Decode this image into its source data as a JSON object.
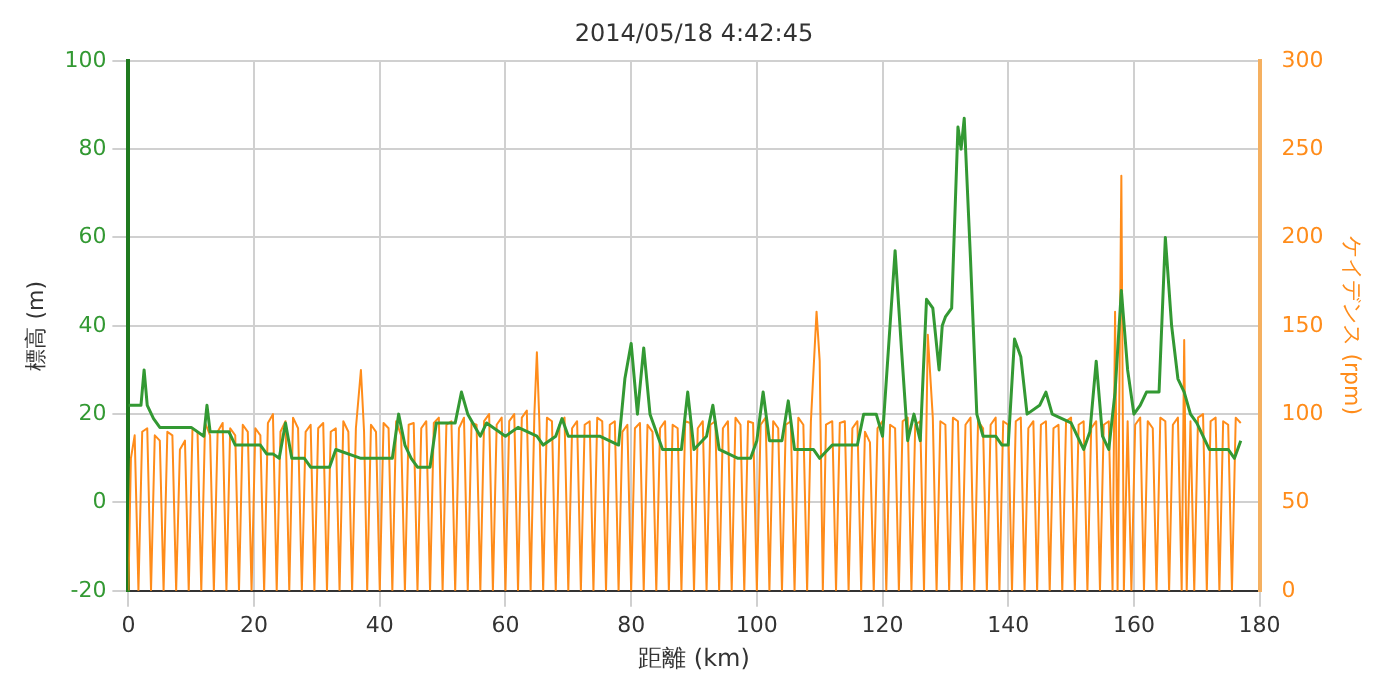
{
  "chart_data": {
    "type": "line",
    "title": "2014/05/18 4:42:45",
    "xlabel": "距離 (km)",
    "ylabel": "標高 (m)",
    "y2label": "ケイデンス (rpm)",
    "xlim": [
      0,
      180
    ],
    "xticks": [
      0,
      20,
      40,
      60,
      80,
      100,
      120,
      140,
      160,
      180
    ],
    "ylim": [
      -20,
      100
    ],
    "yticks": [
      -20,
      0,
      20,
      40,
      60,
      80,
      100
    ],
    "y2lim": [
      0,
      300
    ],
    "y2ticks": [
      0,
      50,
      100,
      150,
      200,
      250,
      300
    ],
    "grid": true,
    "series": [
      {
        "color": "#ff8c1a",
        "axis": "y2",
        "x": [
          0,
          0.4,
          1,
          1.6,
          2.2,
          3,
          3.6,
          4.2,
          5,
          5.6,
          6.2,
          7,
          7.6,
          8.2,
          9,
          9.6,
          10.2,
          11,
          11.6,
          12.2,
          13,
          13.6,
          14.2,
          15,
          15.6,
          16.2,
          17,
          17.6,
          18.2,
          19,
          19.6,
          20.2,
          21,
          21.6,
          22.2,
          23,
          23.6,
          24.2,
          25,
          25.6,
          26.2,
          27,
          27.6,
          28.2,
          29,
          29.6,
          30.2,
          31,
          31.6,
          32.2,
          33,
          33.6,
          34.2,
          35,
          35.6,
          36.2,
          37,
          37.5,
          38,
          38.6,
          39.4,
          40,
          40.6,
          41.4,
          42,
          42.6,
          43.4,
          44,
          44.6,
          45.4,
          46,
          46.6,
          47.4,
          48,
          48.6,
          49.4,
          50,
          50.6,
          51.4,
          52,
          52.6,
          53.4,
          54,
          54.6,
          55.4,
          56,
          56.6,
          57.4,
          58,
          58.6,
          59.4,
          60,
          60.6,
          61.4,
          62,
          62.6,
          63.4,
          64,
          64.6,
          65,
          65.4,
          66,
          66.6,
          67.4,
          68,
          68.6,
          69.4,
          70,
          70.6,
          71.4,
          72,
          72.6,
          73.4,
          74,
          74.6,
          75.4,
          76,
          76.6,
          77.4,
          78,
          78.6,
          79.4,
          80,
          80.6,
          81.4,
          82,
          82.6,
          83.4,
          84,
          84.6,
          85.4,
          86,
          86.6,
          87.4,
          88,
          88.6,
          89.4,
          90,
          90.6,
          91.4,
          92,
          92.6,
          93.4,
          94,
          94.6,
          95.4,
          96,
          96.6,
          97.4,
          98,
          98.6,
          99.4,
          100,
          100.6,
          101.4,
          102,
          102.6,
          103.4,
          104,
          104.6,
          105.4,
          106,
          106.6,
          107.4,
          108,
          108.6,
          109.5,
          110,
          110.5,
          111,
          112,
          112.6,
          113.2,
          114,
          114.6,
          115.2,
          116,
          116.6,
          117.2,
          118,
          118.6,
          119.2,
          120,
          120.6,
          121.2,
          122,
          122.6,
          123.2,
          124,
          124.6,
          125.2,
          126,
          126.6,
          127.2,
          128,
          128.6,
          129.2,
          130,
          130.6,
          131.2,
          132,
          132.6,
          133.2,
          134,
          134.6,
          135.2,
          136,
          136.6,
          137.2,
          138,
          138.6,
          139.2,
          140,
          140.6,
          141.2,
          142,
          142.6,
          143.2,
          144,
          144.6,
          145.2,
          146,
          146.6,
          147.2,
          148,
          148.6,
          149.2,
          150,
          150.6,
          151.2,
          152,
          152.6,
          153.2,
          154,
          154.6,
          155.2,
          156,
          156.6,
          157,
          157.4,
          158,
          158.4,
          159,
          159.6,
          160.2,
          161,
          161.6,
          162.2,
          163,
          163.6,
          164.2,
          165,
          165.6,
          166.2,
          167,
          167.6,
          168,
          168.4,
          169,
          169.6,
          170.2,
          171,
          171.6,
          172.2,
          173,
          173.6,
          174.2,
          175,
          175.6,
          176.2,
          177
        ],
        "values": [
          0,
          75,
          88,
          0,
          90,
          92,
          0,
          88,
          85,
          0,
          90,
          88,
          0,
          80,
          85,
          0,
          92,
          90,
          0,
          95,
          88,
          0,
          90,
          95,
          0,
          92,
          88,
          0,
          94,
          90,
          0,
          92,
          88,
          0,
          95,
          100,
          0,
          90,
          96,
          0,
          98,
          92,
          0,
          90,
          94,
          0,
          92,
          95,
          0,
          90,
          92,
          0,
          96,
          90,
          0,
          92,
          125,
          90,
          0,
          94,
          90,
          0,
          95,
          92,
          0,
          96,
          88,
          0,
          94,
          95,
          0,
          92,
          96,
          0,
          95,
          98,
          0,
          94,
          96,
          0,
          92,
          98,
          0,
          95,
          94,
          0,
          96,
          100,
          0,
          94,
          98,
          0,
          96,
          100,
          0,
          98,
          102,
          0,
          100,
          135,
          95,
          0,
          98,
          96,
          0,
          94,
          98,
          0,
          92,
          96,
          0,
          94,
          96,
          0,
          98,
          96,
          0,
          94,
          96,
          0,
          90,
          94,
          0,
          92,
          95,
          0,
          94,
          90,
          0,
          92,
          96,
          0,
          94,
          92,
          0,
          96,
          95,
          0,
          92,
          96,
          0,
          94,
          96,
          0,
          92,
          96,
          0,
          98,
          94,
          0,
          96,
          95,
          0,
          94,
          98,
          0,
          96,
          92,
          0,
          94,
          96,
          0,
          98,
          94,
          0,
          96,
          158,
          130,
          0,
          94,
          96,
          0,
          95,
          96,
          0,
          92,
          96,
          0,
          90,
          84,
          0,
          92,
          96,
          0,
          94,
          92,
          0,
          96,
          98,
          0,
          94,
          96,
          0,
          145,
          98,
          0,
          96,
          94,
          0,
          98,
          96,
          0,
          94,
          98,
          0,
          96,
          92,
          0,
          94,
          98,
          0,
          96,
          94,
          0,
          96,
          98,
          0,
          92,
          96,
          0,
          94,
          96,
          0,
          92,
          94,
          0,
          96,
          98,
          0,
          94,
          96,
          0,
          92,
          96,
          0,
          94,
          96,
          0,
          158,
          0,
          235,
          0,
          96,
          0,
          94,
          98,
          0,
          96,
          92,
          0,
          98,
          96,
          0,
          94,
          98,
          0,
          142,
          0,
          96,
          0,
          98,
          100,
          0,
          96,
          98,
          0,
          96,
          94,
          0,
          98,
          95
        ]
      },
      {
        "color": "#339933",
        "x": [
          0,
          2,
          2.5,
          3,
          4,
          5,
          10,
          12,
          12.5,
          13,
          16,
          17,
          21,
          22,
          23,
          24,
          25,
          26,
          28,
          29,
          32,
          33,
          37,
          42,
          43,
          44,
          45,
          46,
          48,
          49,
          52,
          53,
          54,
          56,
          57,
          60,
          62,
          65,
          66,
          68,
          69,
          70,
          75,
          78,
          79,
          80,
          81,
          82,
          83,
          85,
          88,
          89,
          90,
          92,
          93,
          94,
          97,
          99,
          100,
          101,
          102,
          104,
          105,
          106,
          109,
          110,
          112,
          116,
          117,
          119,
          120,
          122,
          123,
          124,
          125,
          126,
          127,
          128,
          129,
          129.5,
          130,
          131,
          132,
          132.5,
          133,
          134,
          135,
          136,
          138,
          139,
          140,
          141,
          142,
          143,
          145,
          146,
          147,
          150,
          152,
          153,
          154,
          155,
          156,
          157,
          158,
          159,
          160,
          161,
          162,
          164,
          165,
          166,
          167,
          168,
          169,
          170,
          172,
          175,
          176,
          177
        ],
        "values": [
          22,
          22,
          30,
          22,
          19,
          17,
          17,
          15,
          22,
          16,
          16,
          13,
          13,
          11,
          11,
          10,
          18,
          10,
          10,
          8,
          8,
          12,
          10,
          10,
          20,
          13,
          10,
          8,
          8,
          18,
          18,
          25,
          20,
          15,
          18,
          15,
          17,
          15,
          13,
          15,
          19,
          15,
          15,
          13,
          28,
          36,
          20,
          35,
          20,
          12,
          12,
          25,
          12,
          15,
          22,
          12,
          10,
          10,
          14,
          25,
          14,
          14,
          23,
          12,
          12,
          10,
          13,
          13,
          20,
          20,
          15,
          57,
          35,
          14,
          20,
          14,
          46,
          44,
          30,
          40,
          42,
          44,
          85,
          80,
          87,
          55,
          20,
          15,
          15,
          13,
          13,
          37,
          33,
          20,
          22,
          25,
          20,
          18,
          12,
          16,
          32,
          15,
          12,
          25,
          48,
          30,
          20,
          22,
          25,
          25,
          60,
          40,
          28,
          25,
          20,
          18,
          12,
          12,
          10,
          14
        ]
      }
    ]
  }
}
